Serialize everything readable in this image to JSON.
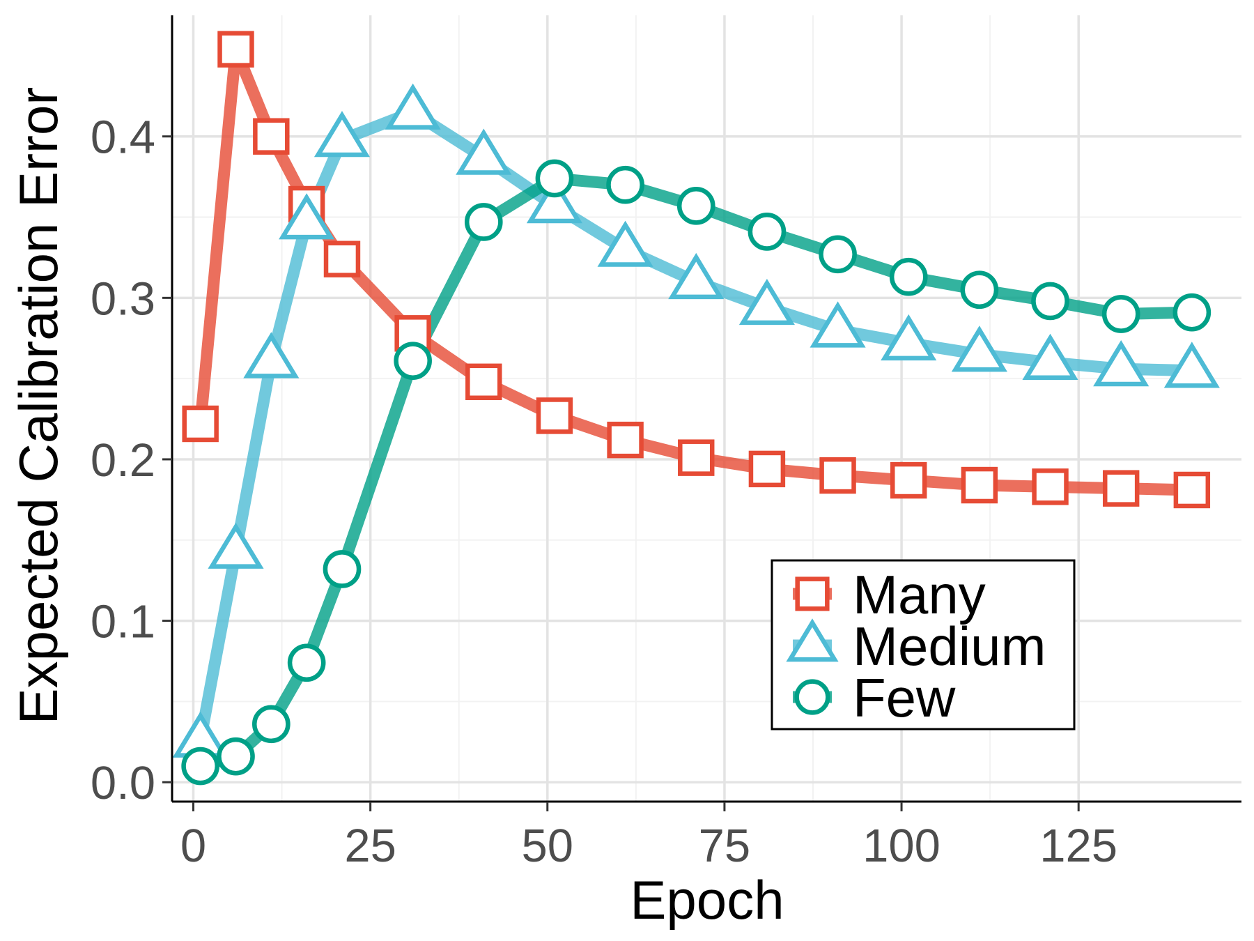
{
  "chart_data": {
    "type": "line",
    "title": "",
    "xlabel": "Epoch",
    "ylabel": "Expected Calibration Error",
    "xlim": [
      -3,
      148
    ],
    "ylim": [
      -0.012,
      0.475
    ],
    "x_ticks": [
      0,
      25,
      50,
      75,
      100,
      125
    ],
    "x_tick_labels": [
      "0",
      "25",
      "50",
      "75",
      "100",
      "125"
    ],
    "y_ticks": [
      0.0,
      0.1,
      0.2,
      0.3,
      0.4
    ],
    "y_tick_labels": [
      "0.0",
      "0.1",
      "0.2",
      "0.3",
      "0.4"
    ],
    "grid": true,
    "legend_position": "bottom-right",
    "x": [
      1,
      6,
      11,
      16,
      21,
      31,
      41,
      51,
      61,
      71,
      81,
      91,
      101,
      111,
      121,
      131,
      141
    ],
    "series": [
      {
        "name": "Many",
        "marker": "square",
        "color": "#E64B35",
        "values": [
          0.222,
          0.454,
          0.4,
          0.358,
          0.324,
          0.278,
          0.248,
          0.227,
          0.212,
          0.201,
          0.194,
          0.19,
          0.187,
          0.184,
          0.183,
          0.182,
          0.181
        ]
      },
      {
        "name": "Medium",
        "marker": "triangle",
        "color": "#4DBBD5",
        "values": [
          0.026,
          0.143,
          0.261,
          0.347,
          0.398,
          0.415,
          0.387,
          0.357,
          0.33,
          0.31,
          0.294,
          0.28,
          0.272,
          0.265,
          0.26,
          0.256,
          0.255
        ]
      },
      {
        "name": "Few",
        "marker": "circle",
        "color": "#00A087",
        "values": [
          0.01,
          0.016,
          0.036,
          0.074,
          0.132,
          0.261,
          0.347,
          0.374,
          0.37,
          0.357,
          0.341,
          0.327,
          0.313,
          0.305,
          0.298,
          0.29,
          0.291
        ]
      }
    ]
  }
}
